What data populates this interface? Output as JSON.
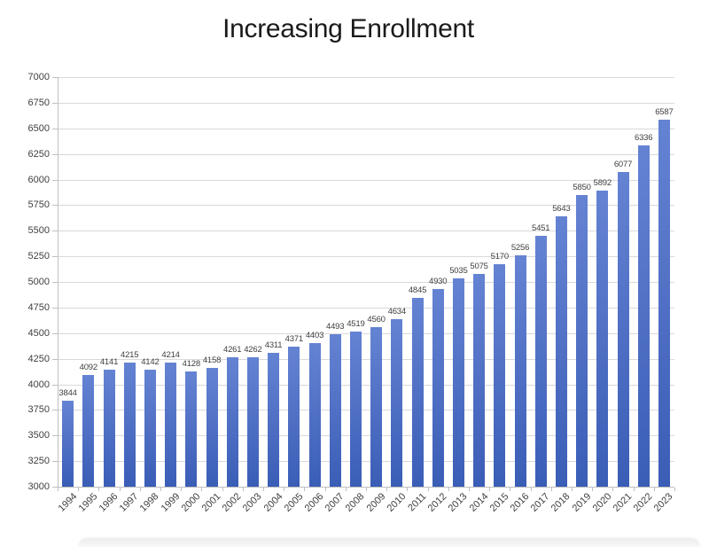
{
  "chart_data": {
    "type": "bar",
    "title": "Increasing Enrollment",
    "xlabel": "",
    "ylabel": "",
    "categories": [
      "1994",
      "1995",
      "1996",
      "1997",
      "1998",
      "1999",
      "2000",
      "2001",
      "2002",
      "2003",
      "2004",
      "2005",
      "2006",
      "2007",
      "2008",
      "2009",
      "2010",
      "2011",
      "2012",
      "2013",
      "2014",
      "2015",
      "2016",
      "2017",
      "2018",
      "2019",
      "2020",
      "2021",
      "2022",
      "2023"
    ],
    "values": [
      3844,
      4092,
      4141,
      4215,
      4142,
      4214,
      4128,
      4158,
      4261,
      4262,
      4311,
      4371,
      4403,
      4493,
      4519,
      4560,
      4634,
      4845,
      4930,
      5035,
      5075,
      5170,
      5256,
      5451,
      5643,
      5850,
      5892,
      6077,
      6336,
      6587
    ],
    "data_labels_shown": true,
    "ylim": [
      3000,
      7000
    ],
    "ytick_step": 250,
    "yticks": [
      7000,
      6750,
      6500,
      6250,
      6000,
      5750,
      5500,
      5250,
      5000,
      4750,
      4500,
      4250,
      4000,
      3750,
      3500,
      3250,
      3000
    ],
    "grid": true,
    "legend": false,
    "colors": {
      "bar_gradient_top": "#6583d3",
      "bar_gradient_bottom": "#3a5db6",
      "gridline": "#d9d9d9",
      "axis_line": "#bfbfbf",
      "tick_label": "#404040",
      "data_label": "#3f3f3f",
      "title": "#1a1a1a"
    }
  }
}
